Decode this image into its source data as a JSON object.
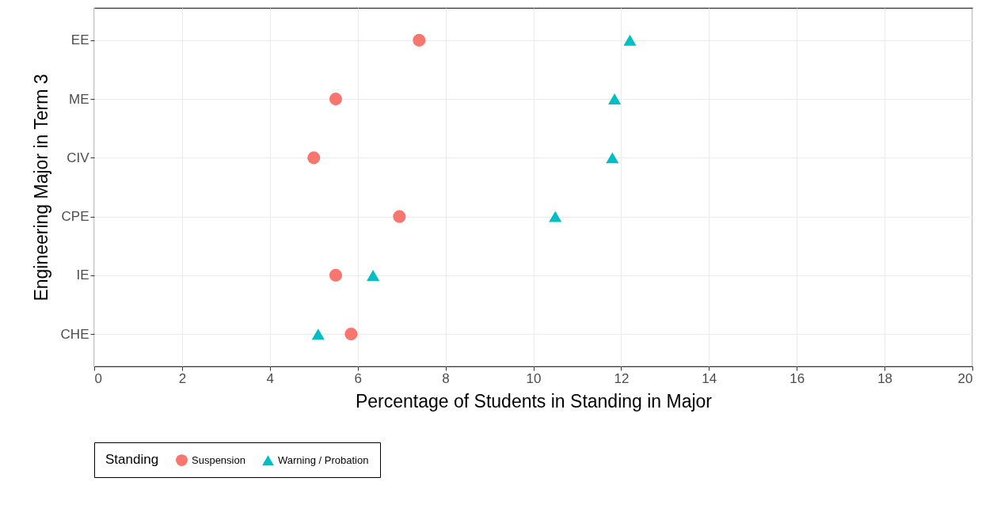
{
  "chart_data": {
    "type": "scatter",
    "orientation": "horizontal",
    "xlabel": "Percentage of Students in Standing in Major",
    "ylabel": "Engineering Major in Term 3",
    "legend_title": "Standing",
    "legend": "bottom",
    "grid": true,
    "categories": [
      "EE",
      "ME",
      "CIV",
      "CPE",
      "IE",
      "CHE"
    ],
    "xlim": [
      0,
      20
    ],
    "xticks": [
      0,
      2,
      4,
      6,
      8,
      10,
      12,
      14,
      16,
      18,
      20
    ],
    "series": [
      {
        "name": "Suspension",
        "color": "#f8766d",
        "marker": "circle",
        "values": [
          7.4,
          5.5,
          5.0,
          6.95,
          5.5,
          5.85
        ]
      },
      {
        "name": "Warning / Probation",
        "color": "#00bfc4",
        "marker": "triangle",
        "values": [
          12.2,
          11.85,
          11.8,
          10.5,
          6.35,
          5.1
        ]
      }
    ]
  }
}
